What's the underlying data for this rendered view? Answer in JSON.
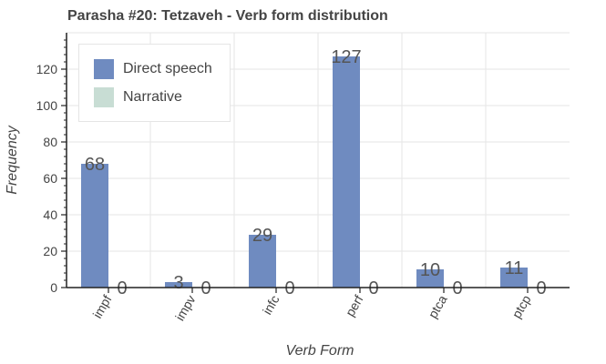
{
  "chart_data": {
    "type": "bar",
    "title": "Parasha #20: Tetzaveh - Verb form distribution",
    "xlabel": "Verb Form",
    "ylabel": "Frequency",
    "categories": [
      "impf",
      "impv",
      "infc",
      "perf",
      "ptca",
      "ptcp"
    ],
    "series": [
      {
        "name": "Direct speech",
        "color": "#6f8bc0",
        "values": [
          68,
          3,
          29,
          127,
          10,
          11
        ]
      },
      {
        "name": "Narrative",
        "color": "#c8ddd4",
        "values": [
          0,
          0,
          0,
          0,
          0,
          0
        ]
      }
    ],
    "ylim": [
      0,
      140
    ],
    "yticks": [
      0,
      20,
      40,
      60,
      80,
      100,
      120
    ],
    "grid": true,
    "legend_position": "top-left"
  }
}
